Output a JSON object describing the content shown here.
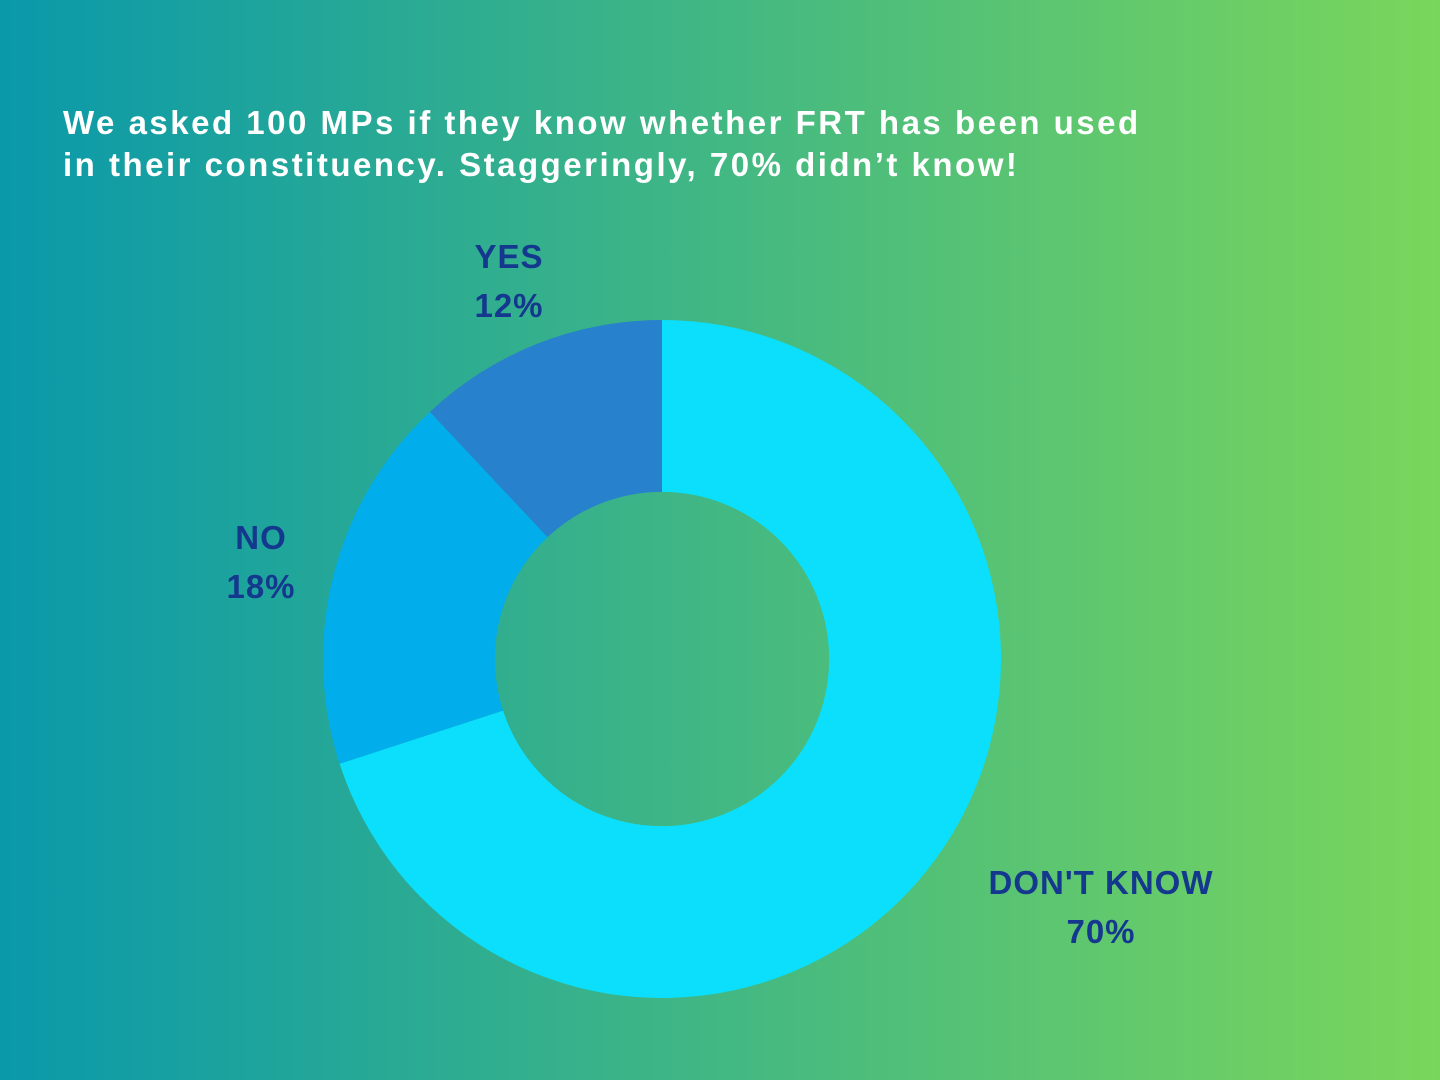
{
  "background": {
    "gradient_start": "#0a99aa",
    "gradient_end": "#7ad65b",
    "direction": "left-to-right"
  },
  "title": {
    "line1": "We asked 100 MPs if they know whether FRT has been used",
    "line2": "in their constituency. Staggeringly, 70% didn’t know!",
    "color": "#ffffff"
  },
  "chart_data": {
    "type": "pie",
    "variant": "donut",
    "title": "We asked 100 MPs if they know whether FRT has been used in their constituency. Staggeringly, 70% didn’t know!",
    "unit": "percent of 100 MPs surveyed",
    "start_angle_deg": 0,
    "direction": "clockwise",
    "inner_radius_ratio": 0.493,
    "label_color": "#14388e",
    "legend_position": "labels-around-chart",
    "slices": [
      {
        "label": "DON'T KNOW",
        "value": 70,
        "pct_label": "70%",
        "color": "#0bdffb"
      },
      {
        "label": "NO",
        "value": 18,
        "pct_label": "18%",
        "color": "#01adeb"
      },
      {
        "label": "YES",
        "value": 12,
        "pct_label": "12%",
        "color": "#2781cc"
      }
    ]
  }
}
